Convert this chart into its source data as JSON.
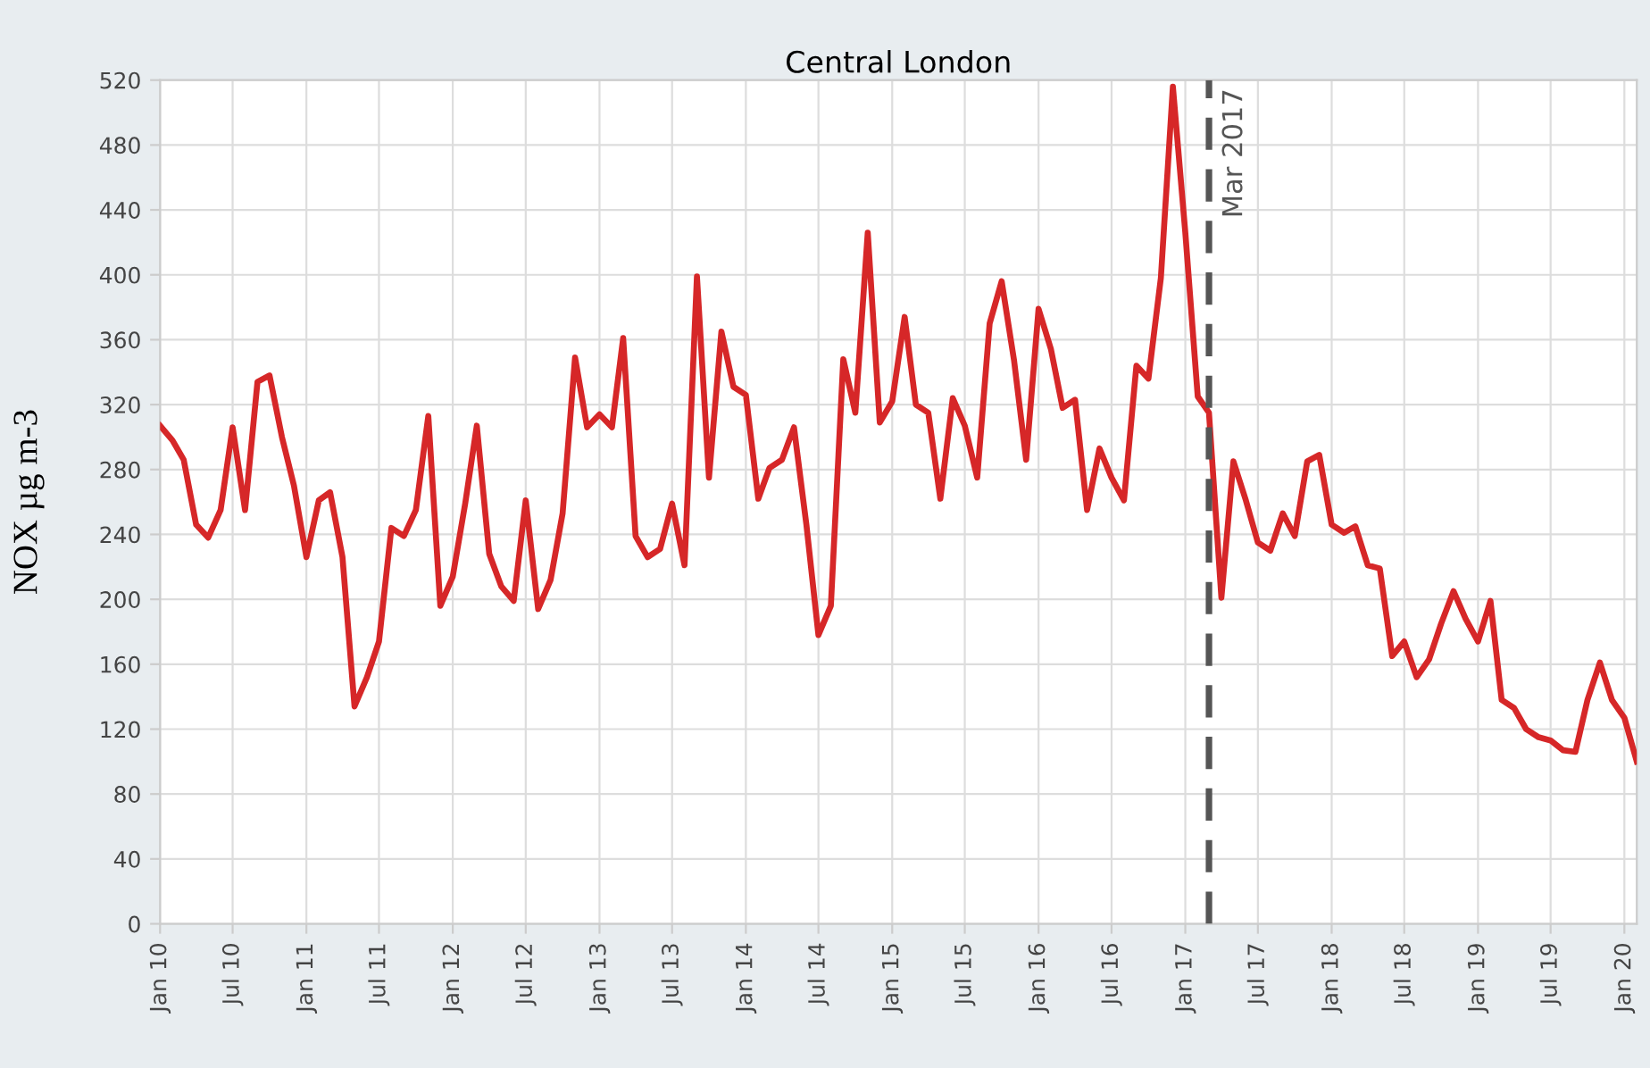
{
  "chart_data": {
    "type": "line",
    "title": "Central London",
    "ylabel": "NOX µg m-3",
    "x": [
      "2010-01",
      "2010-02",
      "2010-03",
      "2010-04",
      "2010-05",
      "2010-06",
      "2010-07",
      "2010-08",
      "2010-09",
      "2010-10",
      "2010-11",
      "2010-12",
      "2011-01",
      "2011-02",
      "2011-03",
      "2011-04",
      "2011-05",
      "2011-06",
      "2011-07",
      "2011-08",
      "2011-09",
      "2011-10",
      "2011-11",
      "2011-12",
      "2012-01",
      "2012-02",
      "2012-03",
      "2012-04",
      "2012-05",
      "2012-06",
      "2012-07",
      "2012-08",
      "2012-09",
      "2012-10",
      "2012-11",
      "2012-12",
      "2013-01",
      "2013-02",
      "2013-03",
      "2013-04",
      "2013-05",
      "2013-06",
      "2013-07",
      "2013-08",
      "2013-09",
      "2013-10",
      "2013-11",
      "2013-12",
      "2014-01",
      "2014-02",
      "2014-03",
      "2014-04",
      "2014-05",
      "2014-06",
      "2014-07",
      "2014-08",
      "2014-09",
      "2014-10",
      "2014-11",
      "2014-12",
      "2015-01",
      "2015-02",
      "2015-03",
      "2015-04",
      "2015-05",
      "2015-06",
      "2015-07",
      "2015-08",
      "2015-09",
      "2015-10",
      "2015-11",
      "2015-12",
      "2016-01",
      "2016-02",
      "2016-03",
      "2016-04",
      "2016-05",
      "2016-06",
      "2016-07",
      "2016-08",
      "2016-09",
      "2016-10",
      "2016-11",
      "2016-12",
      "2017-01",
      "2017-02",
      "2017-03",
      "2017-04",
      "2017-05",
      "2017-06",
      "2017-07",
      "2017-08",
      "2017-09",
      "2017-10",
      "2017-11",
      "2017-12",
      "2018-01",
      "2018-02",
      "2018-03",
      "2018-04",
      "2018-05",
      "2018-06",
      "2018-07",
      "2018-08",
      "2018-09",
      "2018-10",
      "2018-11",
      "2018-12",
      "2019-01",
      "2019-02",
      "2019-03",
      "2019-04",
      "2019-05",
      "2019-06",
      "2019-07",
      "2019-08",
      "2019-09",
      "2019-10",
      "2019-11",
      "2019-12",
      "2020-01",
      "2020-02"
    ],
    "series": [
      {
        "color": "#d62728",
        "values": [
          307,
          298,
          286,
          246,
          238,
          255,
          306,
          255,
          334,
          338,
          300,
          270,
          226,
          261,
          266,
          226,
          134,
          152,
          174,
          244,
          239,
          255,
          313,
          196,
          214,
          259,
          307,
          228,
          208,
          199,
          261,
          194,
          212,
          253,
          349,
          306,
          314,
          306,
          361,
          239,
          226,
          231,
          259,
          221,
          399,
          275,
          365,
          331,
          326,
          262,
          281,
          286,
          306,
          246,
          178,
          196,
          348,
          315,
          426,
          309,
          322,
          374,
          320,
          315,
          262,
          324,
          307,
          275,
          370,
          396,
          347,
          286,
          379,
          354,
          318,
          323,
          255,
          293,
          275,
          261,
          344,
          336,
          398,
          516,
          426,
          325,
          315,
          201,
          285,
          261,
          235,
          230,
          253,
          239,
          285,
          289,
          246,
          241,
          245,
          221,
          219,
          165,
          174,
          152,
          163,
          185,
          205,
          188,
          174,
          199,
          138,
          133,
          120,
          115,
          113,
          107,
          106,
          138,
          161,
          138,
          127,
          100
        ]
      }
    ],
    "xlim": [
      "2010-01",
      "2020-02"
    ],
    "xticks": [
      {
        "value": "2010-01",
        "label": "Jan 10"
      },
      {
        "value": "2010-07",
        "label": "Jul 10"
      },
      {
        "value": "2011-01",
        "label": "Jan 11"
      },
      {
        "value": "2011-07",
        "label": "Jul 11"
      },
      {
        "value": "2012-01",
        "label": "Jan 12"
      },
      {
        "value": "2012-07",
        "label": "Jul 12"
      },
      {
        "value": "2013-01",
        "label": "Jan 13"
      },
      {
        "value": "2013-07",
        "label": "Jul 13"
      },
      {
        "value": "2014-01",
        "label": "Jan 14"
      },
      {
        "value": "2014-07",
        "label": "Jul 14"
      },
      {
        "value": "2015-01",
        "label": "Jan 15"
      },
      {
        "value": "2015-07",
        "label": "Jul 15"
      },
      {
        "value": "2016-01",
        "label": "Jan 16"
      },
      {
        "value": "2016-07",
        "label": "Jul 16"
      },
      {
        "value": "2017-01",
        "label": "Jan 17"
      },
      {
        "value": "2017-07",
        "label": "Jul 17"
      },
      {
        "value": "2018-01",
        "label": "Jan 18"
      },
      {
        "value": "2018-07",
        "label": "Jul 18"
      },
      {
        "value": "2019-01",
        "label": "Jan 19"
      },
      {
        "value": "2019-07",
        "label": "Jul 19"
      },
      {
        "value": "2020-01",
        "label": "Jan 20"
      }
    ],
    "ylim": [
      0,
      520
    ],
    "yticks": [
      0,
      40,
      80,
      120,
      160,
      200,
      240,
      280,
      320,
      360,
      400,
      440,
      480,
      520
    ],
    "ref_lines": [
      {
        "axis": "x",
        "value": "2017-03",
        "label": "Mar 2017",
        "color": "#555555",
        "line_style": "dashed"
      }
    ],
    "grid": true
  }
}
